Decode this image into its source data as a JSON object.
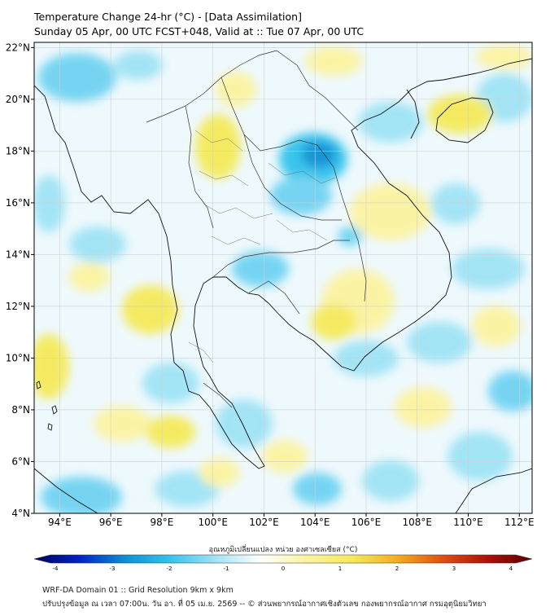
{
  "header": {
    "title_line1": "Temperature Change 24-hr (°C) - [Data Assimilation]",
    "title_line2": "Sunday 05 Apr, 00 UTC FCST+048, Valid at :: Tue 07 Apr, 00 UTC"
  },
  "map": {
    "lon_range": [
      93,
      112.5
    ],
    "lat_range": [
      4,
      22.2
    ],
    "lon_ticks": [
      {
        "value": 94,
        "label": "94°E"
      },
      {
        "value": 96,
        "label": "96°E"
      },
      {
        "value": 98,
        "label": "98°E"
      },
      {
        "value": 100,
        "label": "100°E"
      },
      {
        "value": 102,
        "label": "102°E"
      },
      {
        "value": 104,
        "label": "104°E"
      },
      {
        "value": 106,
        "label": "106°E"
      },
      {
        "value": 108,
        "label": "108°E"
      },
      {
        "value": 110,
        "label": "110°E"
      },
      {
        "value": 112,
        "label": "112°E"
      }
    ],
    "lat_ticks": [
      {
        "value": 4,
        "label": "4°N"
      },
      {
        "value": 6,
        "label": "6°N"
      },
      {
        "value": 8,
        "label": "8°N"
      },
      {
        "value": 10,
        "label": "10°N"
      },
      {
        "value": 12,
        "label": "12°N"
      },
      {
        "value": 14,
        "label": "14°N"
      },
      {
        "value": 16,
        "label": "16°N"
      },
      {
        "value": 18,
        "label": "18°N"
      },
      {
        "value": 20,
        "label": "20°N"
      },
      {
        "value": 22,
        "label": "22°N"
      }
    ],
    "colors": {
      "neutral": "#ffffff",
      "warm": "#f5ea5a",
      "cool": "#33c3ec",
      "strong_cool": "#0a8fd6",
      "border": "#333333",
      "coast": "#111111",
      "grid": "#cfcfcf"
    }
  },
  "colorbar": {
    "title": "อุณหภูมิเปลี่ยนแปลง หน่วย องศาเซลเซียส (°C)",
    "min": -4,
    "max": 4,
    "ticks": [
      {
        "value": -4,
        "label": "-4"
      },
      {
        "value": -3,
        "label": "-3"
      },
      {
        "value": -2,
        "label": "-2"
      },
      {
        "value": -1,
        "label": "-1"
      },
      {
        "value": 0,
        "label": "0"
      },
      {
        "value": 1,
        "label": "1"
      },
      {
        "value": 2,
        "label": "2"
      },
      {
        "value": 3,
        "label": "3"
      },
      {
        "value": 4,
        "label": "4"
      }
    ],
    "stops": [
      "#00005a",
      "#0022c8",
      "#0a8fd6",
      "#33c3ec",
      "#9fe3f5",
      "#ffffff",
      "#fcf3a0",
      "#f5ea5a",
      "#f2b020",
      "#e25010",
      "#b01008",
      "#5a0000"
    ]
  },
  "footer": {
    "line1": "WRF-DA Domain 01 :: Grid Resolution 9km x 9km",
    "line2": "ปรับปรุงข้อมูล ณ เวลา 07:00น. วัน อา. ที่ 05 เม.ย. 2569 -- © ส่วนพยากรณ์อากาศเชิงตัวเลข กองพยากรณ์อากาศ กรมอุตุนิยมวิทยา"
  }
}
